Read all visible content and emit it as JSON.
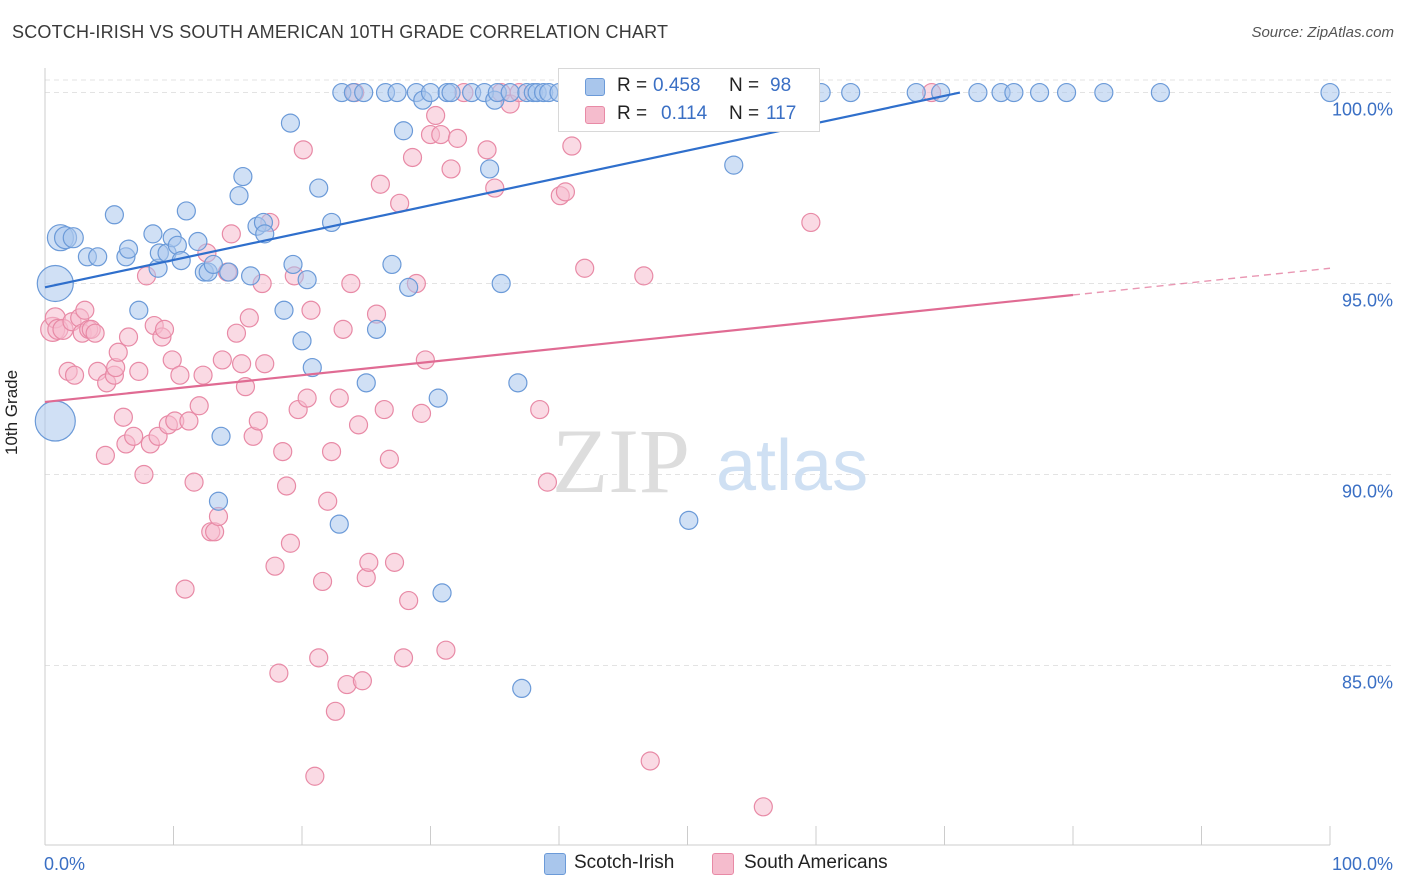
{
  "header": {
    "title": "SCOTCH-IRISH VS SOUTH AMERICAN 10TH GRADE CORRELATION CHART",
    "source": "Source: ZipAtlas.com"
  },
  "colors": {
    "blue_fill": "#a9c6ec",
    "blue_stroke": "#6b9ad8",
    "blue_line": "#2f6fcc",
    "pink_fill": "#f5bccd",
    "pink_stroke": "#e88aa6",
    "pink_line": "#e06b93",
    "axis_text": "#3a6fc4",
    "grid": "#e3e3e3"
  },
  "stats": {
    "r_label": "R =",
    "n_label": "N =",
    "rows": [
      {
        "r": "0.458",
        "n": "98"
      },
      {
        "r": "0.114",
        "n": "117"
      }
    ]
  },
  "legend": {
    "items": [
      {
        "label": "Scotch-Irish"
      },
      {
        "label": "South Americans"
      }
    ]
  },
  "watermark": {
    "zip": "ZIP",
    "atlas": "atlas"
  },
  "chart_data": {
    "type": "scatter",
    "ylabel": "10th Grade",
    "xlim": [
      0,
      100
    ],
    "ylim": [
      80.3,
      100.8
    ],
    "x_tick_labels": [
      "0.0%",
      "100.0%"
    ],
    "y_ticks": [
      {
        "value": 85,
        "label": "85.0%"
      },
      {
        "value": 90,
        "label": "90.0%"
      },
      {
        "value": 95,
        "label": "95.0%"
      },
      {
        "value": 100,
        "label": "100.0%"
      }
    ],
    "grid": true,
    "legend_position": "bottom-center",
    "series": [
      {
        "name": "Scotch-Irish",
        "trend": {
          "x": [
            0,
            71.2
          ],
          "y": [
            94.9,
            100.0
          ]
        },
        "points": [
          [
            0.8,
            91.4,
            20
          ],
          [
            0.8,
            95.0,
            18
          ],
          [
            1.2,
            96.2,
            13
          ],
          [
            1.6,
            96.2,
            11
          ],
          [
            2.2,
            96.2,
            10
          ],
          [
            3.3,
            95.7,
            9
          ],
          [
            4.1,
            95.7,
            9
          ],
          [
            5.4,
            96.8,
            9
          ],
          [
            6.3,
            95.7,
            9
          ],
          [
            6.5,
            95.9,
            9
          ],
          [
            7.3,
            94.3,
            9
          ],
          [
            8.4,
            96.3,
            9
          ],
          [
            8.8,
            95.4,
            9
          ],
          [
            8.9,
            95.8,
            9
          ],
          [
            9.5,
            95.8,
            9
          ],
          [
            9.9,
            96.2,
            9
          ],
          [
            10.3,
            96.0,
            9
          ],
          [
            10.6,
            95.6,
            9
          ],
          [
            11.0,
            96.9,
            9
          ],
          [
            11.9,
            96.1,
            9
          ],
          [
            12.4,
            95.3,
            9
          ],
          [
            12.7,
            95.3,
            9
          ],
          [
            13.1,
            95.5,
            9
          ],
          [
            13.5,
            89.3,
            9
          ],
          [
            13.7,
            91.0,
            9
          ],
          [
            14.3,
            95.3,
            9
          ],
          [
            15.1,
            97.3,
            9
          ],
          [
            15.4,
            97.8,
            9
          ],
          [
            16.0,
            95.2,
            9
          ],
          [
            16.5,
            96.5,
            9
          ],
          [
            17.0,
            96.6,
            9
          ],
          [
            17.1,
            96.3,
            9
          ],
          [
            18.6,
            94.3,
            9
          ],
          [
            19.1,
            99.2,
            9
          ],
          [
            19.3,
            95.5,
            9
          ],
          [
            20.0,
            93.5,
            9
          ],
          [
            20.4,
            95.1,
            9
          ],
          [
            20.8,
            92.8,
            9
          ],
          [
            21.3,
            97.5,
            9
          ],
          [
            22.3,
            96.6,
            9
          ],
          [
            22.9,
            88.7,
            9
          ],
          [
            23.1,
            100.0,
            9
          ],
          [
            24.0,
            100.0,
            9
          ],
          [
            24.8,
            100.0,
            9
          ],
          [
            25.0,
            92.4,
            9
          ],
          [
            25.8,
            93.8,
            9
          ],
          [
            26.5,
            100.0,
            9
          ],
          [
            27.0,
            95.5,
            9
          ],
          [
            27.4,
            100.0,
            9
          ],
          [
            27.9,
            99.0,
            9
          ],
          [
            28.3,
            94.9,
            9
          ],
          [
            28.9,
            100.0,
            9
          ],
          [
            29.4,
            99.8,
            9
          ],
          [
            30.0,
            100.0,
            9
          ],
          [
            30.6,
            92.0,
            9
          ],
          [
            30.9,
            86.9,
            9
          ],
          [
            31.3,
            100.0,
            9
          ],
          [
            31.6,
            100.0,
            9
          ],
          [
            33.2,
            100.0,
            9
          ],
          [
            34.2,
            100.0,
            9
          ],
          [
            34.6,
            98.0,
            9
          ],
          [
            35.0,
            99.8,
            9
          ],
          [
            35.2,
            100.0,
            9
          ],
          [
            35.5,
            95.0,
            9
          ],
          [
            36.2,
            100.0,
            9
          ],
          [
            36.8,
            92.4,
            9
          ],
          [
            37.1,
            84.4,
            9
          ],
          [
            37.5,
            100.0,
            9
          ],
          [
            38.0,
            100.0,
            9
          ],
          [
            38.3,
            100.0,
            9
          ],
          [
            38.8,
            100.0,
            9
          ],
          [
            39.2,
            100.0,
            9
          ],
          [
            40.0,
            100.0,
            9
          ],
          [
            41.4,
            100.0,
            9
          ],
          [
            42.4,
            100.0,
            9
          ],
          [
            43.1,
            100.0,
            9
          ],
          [
            44.2,
            100.0,
            9
          ],
          [
            45.7,
            100.0,
            9
          ],
          [
            46.8,
            100.0,
            9
          ],
          [
            48.0,
            100.0,
            9
          ],
          [
            50.1,
            88.8,
            9
          ],
          [
            51.0,
            100.0,
            9
          ],
          [
            52.4,
            100.0,
            9
          ],
          [
            53.6,
            98.1,
            9
          ],
          [
            55.4,
            100.0,
            9
          ],
          [
            57.8,
            100.0,
            9
          ],
          [
            60.4,
            100.0,
            9
          ],
          [
            62.7,
            100.0,
            9
          ],
          [
            67.8,
            100.0,
            9
          ],
          [
            69.7,
            100.0,
            9
          ],
          [
            72.6,
            100.0,
            9
          ],
          [
            74.4,
            100.0,
            9
          ],
          [
            75.4,
            100.0,
            9
          ],
          [
            77.4,
            100.0,
            9
          ],
          [
            79.5,
            100.0,
            9
          ],
          [
            82.4,
            100.0,
            9
          ],
          [
            86.8,
            100.0,
            9
          ],
          [
            100.0,
            100.0,
            9
          ]
        ]
      },
      {
        "name": "South Americans",
        "trend": {
          "x": [
            0,
            80.0
          ],
          "y": [
            91.9,
            94.7
          ]
        },
        "trend_dashed": {
          "x": [
            80.0,
            100.0
          ],
          "y": [
            94.7,
            95.4
          ]
        },
        "points": [
          [
            0.6,
            93.8,
            12
          ],
          [
            0.8,
            94.1,
            10
          ],
          [
            1.0,
            93.8,
            10
          ],
          [
            1.4,
            93.8,
            10
          ],
          [
            1.8,
            92.7,
            9
          ],
          [
            2.1,
            94.0,
            9
          ],
          [
            2.3,
            92.6,
            9
          ],
          [
            2.7,
            94.1,
            9
          ],
          [
            2.9,
            93.7,
            9
          ],
          [
            3.1,
            94.3,
            9
          ],
          [
            3.4,
            93.8,
            9
          ],
          [
            3.6,
            93.8,
            9
          ],
          [
            3.9,
            93.7,
            9
          ],
          [
            4.1,
            92.7,
            9
          ],
          [
            4.7,
            90.5,
            9
          ],
          [
            4.8,
            92.4,
            9
          ],
          [
            5.4,
            92.6,
            9
          ],
          [
            5.5,
            92.8,
            9
          ],
          [
            5.7,
            93.2,
            9
          ],
          [
            6.1,
            91.5,
            9
          ],
          [
            6.3,
            90.8,
            9
          ],
          [
            6.5,
            93.6,
            9
          ],
          [
            6.9,
            91.0,
            9
          ],
          [
            7.3,
            92.7,
            9
          ],
          [
            7.7,
            90.0,
            9
          ],
          [
            7.9,
            95.2,
            9
          ],
          [
            8.2,
            90.8,
            9
          ],
          [
            8.5,
            93.9,
            9
          ],
          [
            8.8,
            91.0,
            9
          ],
          [
            9.1,
            93.6,
            9
          ],
          [
            9.3,
            93.8,
            9
          ],
          [
            9.6,
            91.3,
            9
          ],
          [
            9.9,
            93.0,
            9
          ],
          [
            10.1,
            91.4,
            9
          ],
          [
            10.5,
            92.6,
            9
          ],
          [
            10.9,
            87.0,
            9
          ],
          [
            11.2,
            91.4,
            9
          ],
          [
            11.6,
            89.8,
            9
          ],
          [
            12.0,
            91.8,
            9
          ],
          [
            12.3,
            92.6,
            9
          ],
          [
            12.6,
            95.8,
            9
          ],
          [
            12.9,
            88.5,
            9
          ],
          [
            13.2,
            88.5,
            9
          ],
          [
            13.5,
            88.9,
            9
          ],
          [
            13.8,
            93.0,
            9
          ],
          [
            14.2,
            95.3,
            9
          ],
          [
            14.5,
            96.3,
            9
          ],
          [
            14.9,
            93.7,
            9
          ],
          [
            15.3,
            92.9,
            9
          ],
          [
            15.6,
            92.3,
            9
          ],
          [
            15.9,
            94.1,
            9
          ],
          [
            16.2,
            91.0,
            9
          ],
          [
            16.6,
            91.4,
            9
          ],
          [
            16.9,
            95.0,
            9
          ],
          [
            17.1,
            92.9,
            9
          ],
          [
            17.5,
            96.6,
            9
          ],
          [
            17.9,
            87.6,
            9
          ],
          [
            18.2,
            84.8,
            9
          ],
          [
            18.5,
            90.6,
            9
          ],
          [
            18.8,
            89.7,
            9
          ],
          [
            19.1,
            88.2,
            9
          ],
          [
            19.4,
            95.2,
            9
          ],
          [
            19.7,
            91.7,
            9
          ],
          [
            20.1,
            98.5,
            9
          ],
          [
            20.4,
            92.0,
            9
          ],
          [
            20.7,
            94.3,
            9
          ],
          [
            21.0,
            82.1,
            9
          ],
          [
            21.3,
            85.2,
            9
          ],
          [
            21.6,
            87.2,
            9
          ],
          [
            22.0,
            89.3,
            9
          ],
          [
            22.3,
            90.6,
            9
          ],
          [
            22.6,
            83.8,
            9
          ],
          [
            22.9,
            92.0,
            9
          ],
          [
            23.2,
            93.8,
            9
          ],
          [
            23.5,
            84.5,
            9
          ],
          [
            23.8,
            95.0,
            9
          ],
          [
            24.1,
            100.0,
            9
          ],
          [
            24.4,
            91.3,
            9
          ],
          [
            24.7,
            84.6,
            9
          ],
          [
            25.0,
            87.3,
            9
          ],
          [
            25.2,
            87.7,
            9
          ],
          [
            25.8,
            94.2,
            9
          ],
          [
            26.1,
            97.6,
            9
          ],
          [
            26.4,
            91.7,
            9
          ],
          [
            26.8,
            90.4,
            9
          ],
          [
            27.2,
            87.7,
            9
          ],
          [
            27.6,
            97.1,
            9
          ],
          [
            27.9,
            85.2,
            9
          ],
          [
            28.3,
            86.7,
            9
          ],
          [
            28.6,
            98.3,
            9
          ],
          [
            28.9,
            95.0,
            9
          ],
          [
            29.3,
            91.6,
            9
          ],
          [
            29.6,
            93.0,
            9
          ],
          [
            30.0,
            98.9,
            9
          ],
          [
            30.4,
            99.4,
            9
          ],
          [
            30.8,
            98.9,
            9
          ],
          [
            31.2,
            85.4,
            9
          ],
          [
            31.6,
            98.0,
            9
          ],
          [
            32.1,
            98.8,
            9
          ],
          [
            32.6,
            100.0,
            9
          ],
          [
            34.4,
            98.5,
            9
          ],
          [
            35.0,
            97.5,
            9
          ],
          [
            35.5,
            100.0,
            9
          ],
          [
            36.2,
            99.7,
            9
          ],
          [
            36.9,
            100.0,
            9
          ],
          [
            38.5,
            91.7,
            9
          ],
          [
            39.1,
            89.8,
            9
          ],
          [
            40.1,
            97.3,
            9
          ],
          [
            40.5,
            97.4,
            9
          ],
          [
            41.0,
            98.6,
            9
          ],
          [
            42.0,
            95.4,
            9
          ],
          [
            44.0,
            100.0,
            9
          ],
          [
            46.6,
            95.2,
            9
          ],
          [
            47.1,
            82.5,
            9
          ],
          [
            55.9,
            81.3,
            9
          ],
          [
            59.6,
            96.6,
            9
          ],
          [
            69.0,
            100.0,
            9
          ]
        ]
      }
    ]
  }
}
